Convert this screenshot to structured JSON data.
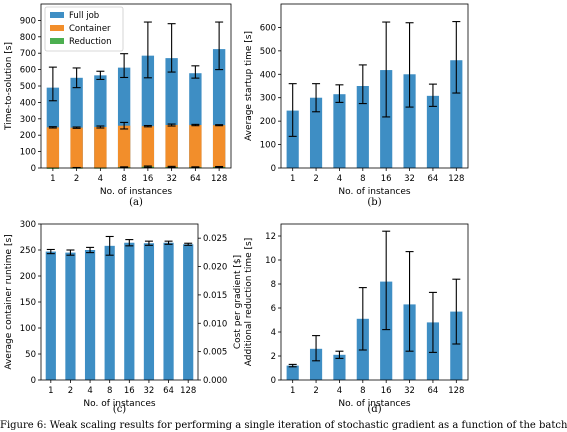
{
  "figure_caption": "Figure 6: Weak scaling results for performing a single iteration of stochastic gradient as a function of the batch",
  "chart_data": [
    {
      "type": "bar",
      "panel_label": "(a)",
      "categories": [
        "1",
        "2",
        "4",
        "8",
        "16",
        "32",
        "64",
        "128"
      ],
      "xlabel": "No. of instances",
      "ylabel": "Time-to-solution [s]",
      "ylim": [
        0,
        1000
      ],
      "yticks": [
        0,
        100,
        200,
        300,
        400,
        500,
        600,
        700,
        800,
        900
      ],
      "legend_position": "top-left",
      "stacked": false,
      "series": [
        {
          "name": "Full job",
          "color": "#3e8ec4",
          "values": [
            490,
            550,
            565,
            612,
            685,
            670,
            578,
            725
          ],
          "err_low": [
            80,
            60,
            25,
            60,
            135,
            85,
            30,
            125
          ],
          "err_high": [
            125,
            60,
            25,
            85,
            205,
            210,
            45,
            165
          ]
        },
        {
          "name": "Container",
          "color": "#f28e2b",
          "values": [
            248,
            246,
            250,
            258,
            255,
            262,
            262,
            261
          ],
          "err_low": [
            4,
            4,
            6,
            20,
            4,
            6,
            4,
            3
          ],
          "err_high": [
            4,
            4,
            6,
            20,
            4,
            6,
            4,
            3
          ]
        },
        {
          "name": "Reduction",
          "color": "#4caf50",
          "values": [
            1,
            2,
            2,
            5,
            8,
            6,
            5,
            6
          ],
          "err_low": [
            0,
            1,
            0,
            2,
            4,
            3,
            2,
            3
          ],
          "err_high": [
            0,
            1,
            0,
            2,
            4,
            4,
            2,
            3
          ]
        }
      ]
    },
    {
      "type": "bar",
      "panel_label": "(b)",
      "categories": [
        "1",
        "2",
        "4",
        "8",
        "16",
        "32",
        "64",
        "128"
      ],
      "xlabel": "No. of instances",
      "ylabel": "Average startup time [s]",
      "ylim": [
        0,
        700
      ],
      "yticks": [
        0,
        100,
        200,
        300,
        400,
        500,
        600
      ],
      "series": [
        {
          "name": "",
          "color": "#3e8ec4",
          "values": [
            245,
            300,
            315,
            350,
            418,
            400,
            308,
            460
          ],
          "err_low": [
            110,
            60,
            35,
            75,
            200,
            140,
            45,
            140
          ],
          "err_high": [
            115,
            60,
            40,
            90,
            205,
            220,
            50,
            165
          ]
        }
      ]
    },
    {
      "type": "bar",
      "panel_label": "(c)",
      "categories": [
        "1",
        "2",
        "4",
        "8",
        "16",
        "32",
        "64",
        "128"
      ],
      "xlabel": "No. of instances",
      "ylabel": "Average container runtime [s]",
      "ylabel_right": "Cost per gradient [$]",
      "ylim": [
        0,
        300
      ],
      "yticks": [
        0,
        50,
        100,
        150,
        200,
        250,
        300
      ],
      "ylim_right": [
        0,
        0.0275
      ],
      "yticks_right": [
        "0.000",
        "0.005",
        "0.010",
        "0.015",
        "0.020",
        "0.025"
      ],
      "series": [
        {
          "name": "",
          "color": "#3e8ec4",
          "values": [
            247,
            245,
            250,
            258,
            264,
            263,
            264,
            261
          ],
          "err_low": [
            4,
            5,
            5,
            18,
            6,
            4,
            3,
            2
          ],
          "err_high": [
            4,
            5,
            5,
            18,
            6,
            4,
            3,
            2
          ]
        }
      ]
    },
    {
      "type": "bar",
      "panel_label": "(d)",
      "categories": [
        "1",
        "2",
        "4",
        "8",
        "16",
        "32",
        "64",
        "128"
      ],
      "xlabel": "No. of instances",
      "ylabel": "Additional reduction time [s]",
      "ylim": [
        0,
        13
      ],
      "yticks": [
        0,
        2,
        4,
        6,
        8,
        10,
        12
      ],
      "series": [
        {
          "name": "",
          "color": "#3e8ec4",
          "values": [
            1.2,
            2.6,
            2.1,
            5.1,
            8.2,
            6.3,
            4.8,
            5.7
          ],
          "err_low": [
            0.1,
            1.0,
            0.3,
            2.6,
            4.0,
            3.9,
            2.5,
            2.7
          ],
          "err_high": [
            0.1,
            1.1,
            0.3,
            2.6,
            4.2,
            4.4,
            2.5,
            2.7
          ]
        }
      ]
    }
  ]
}
